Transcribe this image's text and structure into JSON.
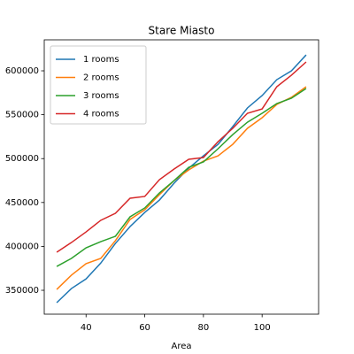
{
  "chart_data": {
    "type": "line",
    "title": "Stare Miasto",
    "x_label": "Area",
    "x": [
      30,
      35,
      40,
      45,
      50,
      55,
      60,
      65,
      70,
      75,
      80,
      85,
      90,
      95,
      100,
      105,
      110,
      115
    ],
    "series": [
      {
        "name": "1 rooms",
        "color": "#1f77b4",
        "values": [
          335900,
          352000,
          363000,
          381000,
          403400,
          422600,
          438700,
          452800,
          472000,
          489100,
          503200,
          516300,
          536500,
          557700,
          571800,
          589900,
          600000,
          618100
        ]
      },
      {
        "name": "2 rooms",
        "color": "#ff7f0e",
        "values": [
          351000,
          367200,
          380300,
          386300,
          406500,
          430700,
          441700,
          458900,
          475000,
          487100,
          497200,
          503200,
          516300,
          534500,
          546600,
          561700,
          569800,
          581900
        ]
      },
      {
        "name": "3 rooms",
        "color": "#2ca02c",
        "values": [
          377200,
          386300,
          398400,
          405400,
          411500,
          433700,
          443800,
          460900,
          475000,
          490100,
          496200,
          511300,
          527400,
          541500,
          551600,
          562700,
          568800,
          579800
        ]
      },
      {
        "name": "4 rooms",
        "color": "#d62728",
        "values": [
          393400,
          404400,
          416500,
          429700,
          437700,
          454900,
          456900,
          476000,
          488100,
          499200,
          501200,
          519400,
          534500,
          551600,
          556600,
          581900,
          595000,
          610100
        ]
      }
    ],
    "xlim": [
      25.75,
      119.25
    ],
    "xticks": [
      40,
      60,
      80,
      100
    ],
    "ylim": [
      322800,
      635300
    ],
    "yticks": [
      350000,
      400000,
      450000,
      500000,
      550000,
      600000
    ],
    "grid": false,
    "legend": "upper left"
  }
}
